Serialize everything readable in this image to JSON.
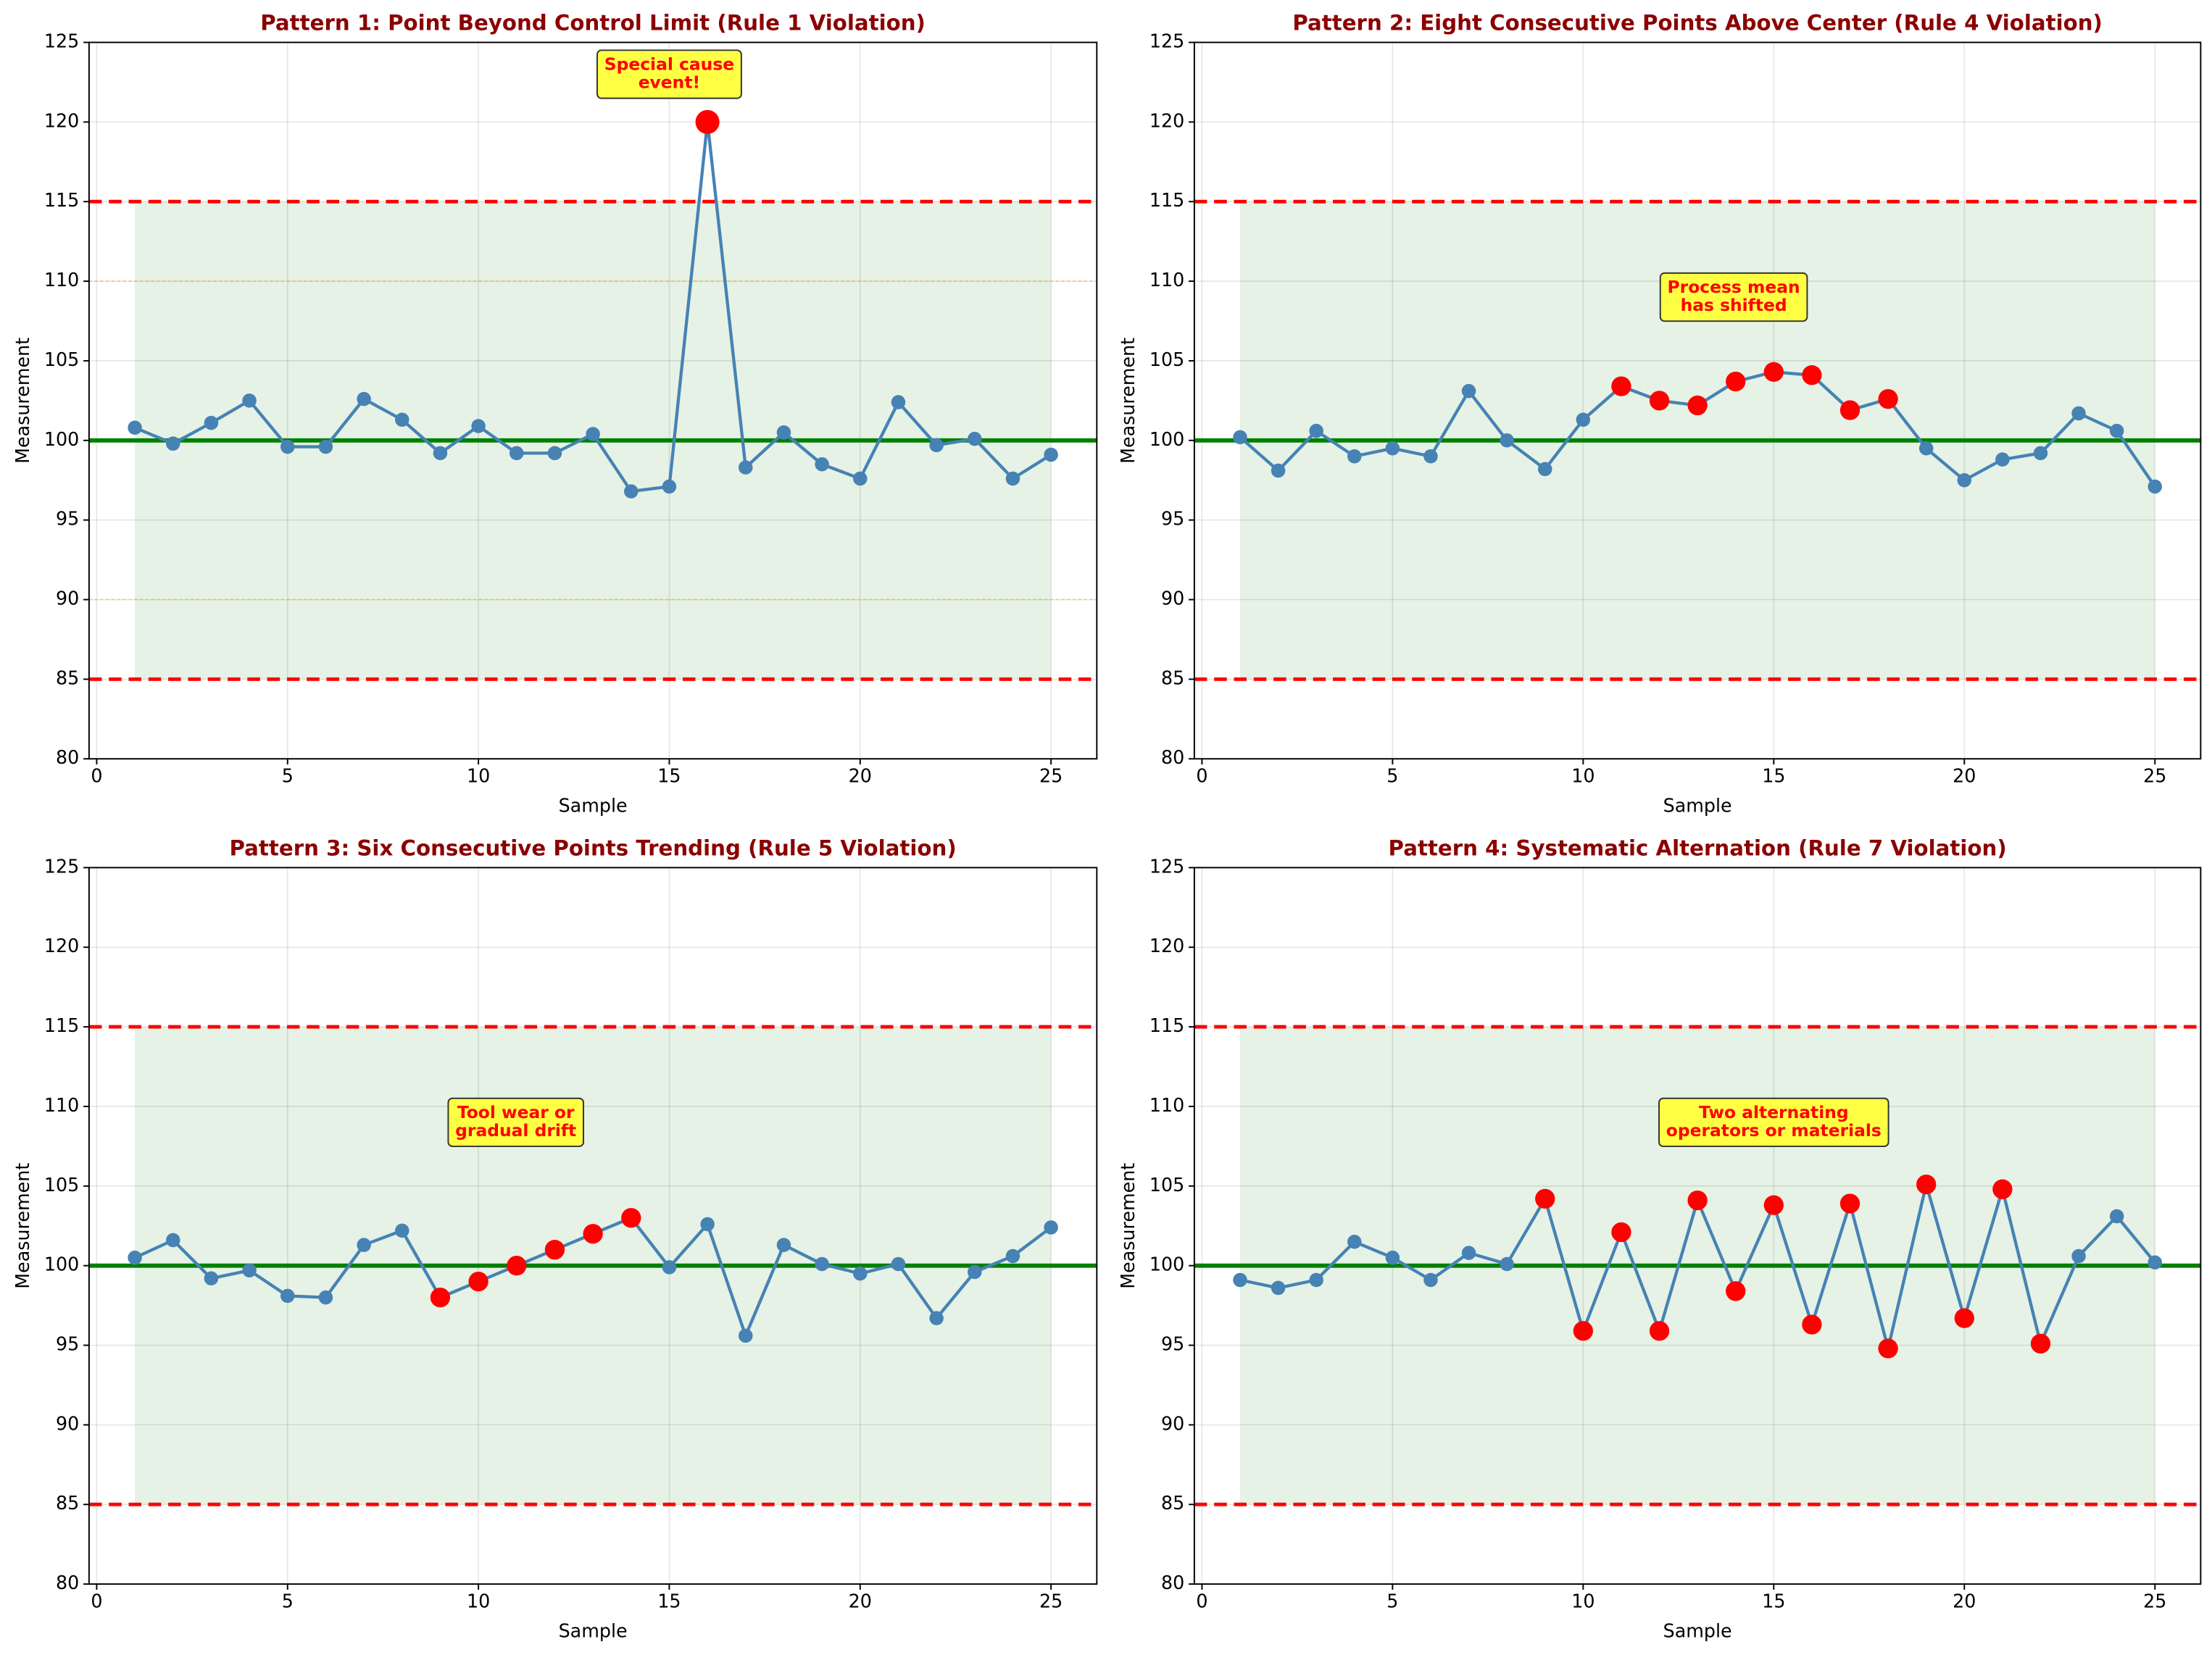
{
  "chart_data": [
    {
      "type": "line",
      "title": "Pattern 1: Point Beyond Control Limit (Rule 1 Violation)",
      "xlabel": "Sample",
      "ylabel": "Measurement",
      "x": [
        1,
        2,
        3,
        4,
        5,
        6,
        7,
        8,
        9,
        10,
        11,
        12,
        13,
        14,
        15,
        16,
        17,
        18,
        19,
        20,
        21,
        22,
        23,
        24,
        25
      ],
      "values": [
        100.8,
        99.8,
        101.1,
        102.5,
        99.6,
        99.6,
        102.6,
        101.3,
        99.2,
        100.9,
        99.2,
        99.2,
        100.4,
        96.8,
        97.1,
        120,
        98.3,
        100.5,
        98.5,
        97.6,
        102.4,
        99.7,
        100.1,
        97.6,
        99.1
      ],
      "color": "#4682b4",
      "highlight_x": [
        16
      ],
      "highlight_color": "red",
      "center_line": 100,
      "center_color": "green",
      "control_limits": [
        85,
        115
      ],
      "limit_color": "red",
      "warning_limits": [
        90,
        110
      ],
      "warning_color": "orange",
      "annotation": [
        "Special cause",
        "event!"
      ],
      "xlim": [
        -0.2,
        26.2
      ],
      "ylim": [
        80,
        125
      ],
      "xticks": [
        0,
        5,
        10,
        15,
        20,
        25
      ],
      "yticks": [
        80,
        85,
        90,
        95,
        100,
        105,
        110,
        115,
        120,
        125
      ],
      "grid": true
    },
    {
      "type": "line",
      "title": "Pattern 2: Eight Consecutive Points Above Center (Rule 4 Violation)",
      "xlabel": "Sample",
      "ylabel": "Measurement",
      "x": [
        1,
        2,
        3,
        4,
        5,
        6,
        7,
        8,
        9,
        10,
        11,
        12,
        13,
        14,
        15,
        16,
        17,
        18,
        19,
        20,
        21,
        22,
        23,
        24,
        25
      ],
      "values": [
        100.2,
        98.1,
        100.6,
        99.0,
        99.5,
        99.0,
        103.1,
        100.0,
        98.2,
        101.3,
        103.4,
        102.5,
        102.2,
        103.7,
        104.3,
        104.1,
        101.9,
        102.6,
        99.5,
        97.5,
        98.8,
        99.2,
        101.7,
        100.6,
        97.1
      ],
      "color": "#4682b4",
      "highlight_x": [
        11,
        12,
        13,
        14,
        15,
        16,
        17,
        18
      ],
      "highlight_color": "red",
      "center_line": 100,
      "center_color": "green",
      "control_limits": [
        85,
        115
      ],
      "limit_color": "red",
      "annotation": [
        "Process mean",
        "has shifted"
      ],
      "xlim": [
        -0.2,
        26.2
      ],
      "ylim": [
        80,
        125
      ],
      "xticks": [
        0,
        5,
        10,
        15,
        20,
        25
      ],
      "yticks": [
        80,
        85,
        90,
        95,
        100,
        105,
        110,
        115,
        120,
        125
      ],
      "grid": true
    },
    {
      "type": "line",
      "title": "Pattern 3: Six Consecutive Points Trending (Rule 5 Violation)",
      "xlabel": "Sample",
      "ylabel": "Measurement",
      "x": [
        1,
        2,
        3,
        4,
        5,
        6,
        7,
        8,
        9,
        10,
        11,
        12,
        13,
        14,
        15,
        16,
        17,
        18,
        19,
        20,
        21,
        22,
        23,
        24,
        25
      ],
      "values": [
        100.5,
        101.6,
        99.2,
        99.7,
        98.1,
        98.0,
        101.3,
        102.2,
        98,
        99,
        100,
        101,
        102,
        103,
        99.9,
        102.6,
        95.6,
        101.3,
        100.1,
        99.5,
        100.1,
        96.7,
        99.6,
        100.6,
        102.4
      ],
      "color": "#4682b4",
      "highlight_x": [
        9,
        10,
        11,
        12,
        13,
        14
      ],
      "highlight_color": "red",
      "center_line": 100,
      "center_color": "green",
      "control_limits": [
        85,
        115
      ],
      "limit_color": "red",
      "annotation": [
        "Tool wear or",
        "gradual drift"
      ],
      "xlim": [
        -0.2,
        26.2
      ],
      "ylim": [
        80,
        125
      ],
      "xticks": [
        0,
        5,
        10,
        15,
        20,
        25
      ],
      "yticks": [
        80,
        85,
        90,
        95,
        100,
        105,
        110,
        115,
        120,
        125
      ],
      "grid": true
    },
    {
      "type": "line",
      "title": "Pattern 4: Systematic Alternation (Rule 7 Violation)",
      "xlabel": "Sample",
      "ylabel": "Measurement",
      "x": [
        1,
        2,
        3,
        4,
        5,
        6,
        7,
        8,
        9,
        10,
        11,
        12,
        13,
        14,
        15,
        16,
        17,
        18,
        19,
        20,
        21,
        22,
        23,
        24,
        25
      ],
      "values": [
        99.1,
        98.6,
        99.1,
        101.5,
        100.5,
        99.1,
        100.8,
        100.1,
        104.2,
        95.9,
        102.1,
        95.9,
        104.1,
        98.4,
        103.8,
        96.3,
        103.9,
        94.8,
        105.1,
        96.7,
        104.8,
        95.1,
        100.6,
        103.1,
        100.2
      ],
      "color": "#4682b4",
      "highlight_x": [
        9,
        10,
        11,
        12,
        13,
        14,
        15,
        16,
        17,
        18,
        19,
        20,
        21,
        22
      ],
      "highlight_color": "red",
      "center_line": 100,
      "center_color": "green",
      "control_limits": [
        85,
        115
      ],
      "limit_color": "red",
      "annotation": [
        "Two alternating",
        "operators or materials"
      ],
      "xlim": [
        -0.2,
        26.2
      ],
      "ylim": [
        80,
        125
      ],
      "xticks": [
        0,
        5,
        10,
        15,
        20,
        25
      ],
      "yticks": [
        80,
        85,
        90,
        95,
        100,
        105,
        110,
        115,
        120,
        125
      ],
      "grid": true
    }
  ]
}
